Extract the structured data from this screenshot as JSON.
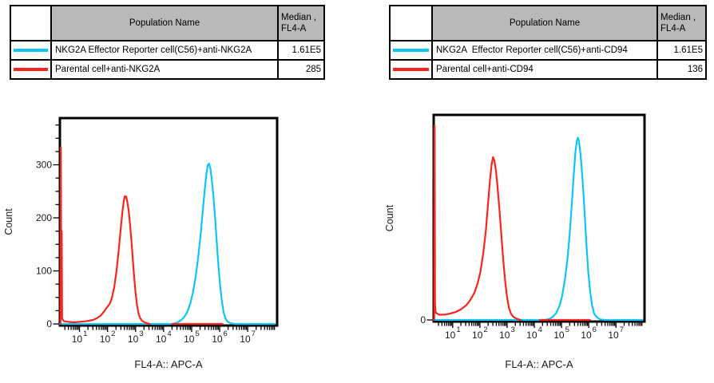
{
  "panels": [
    {
      "legend": {
        "header": {
          "swatch": "",
          "name": "Population Name",
          "median_line1": "Median ,",
          "median_line2": "FL4-A"
        },
        "rows": [
          {
            "name": "NKG2A Effector Reporter cell(C56)+anti-NKG2A",
            "median": "1.61E5",
            "color": "#0cc5f8"
          },
          {
            "name": "Parental cell+anti-NKG2A",
            "median": "285",
            "color": "#fa241c"
          }
        ]
      }
    },
    {
      "legend": {
        "header": {
          "swatch": "",
          "name": "Population Name",
          "median_line1": "Median ,",
          "median_line2": "FL4-A"
        },
        "rows": [
          {
            "name": "NKG2A  Effector Reporter cell(C56)+anti-CD94",
            "median": "1.61E5",
            "color": "#0cc5f8"
          },
          {
            "name": "Parental cell+anti-CD94",
            "median": "136",
            "color": "#fa241c"
          }
        ]
      }
    }
  ],
  "chart_data": [
    {
      "type": "line",
      "subtype": "flow-cytometry-histogram-overlay",
      "title": "",
      "xlabel": "FL4-A:: APC-A",
      "ylabel": "Count",
      "x_scale": "log10",
      "x_log_range": [
        0.3,
        8.05
      ],
      "x_tick_base": "10",
      "x_major_decades": [
        1,
        2,
        3,
        4,
        5,
        6,
        7
      ],
      "ylim": [
        0,
        385
      ],
      "y_ticks": [
        0,
        100,
        200,
        300
      ],
      "y_tick_labels": [
        "0",
        "100",
        "200",
        "300"
      ],
      "y_minor_step": 25,
      "grid": false,
      "legend_position": "table-above",
      "series": [
        {
          "name": "NKG2A Effector Reporter cell(C56)+anti-NKG2A",
          "color": "#0cc5f8",
          "median": "1.61E5",
          "peak": {
            "x_log": 5.62,
            "count": 302
          },
          "segments": [
            [
              [
                0.3,
                0
              ],
              [
                4.3,
                0
              ],
              [
                4.45,
                2
              ],
              [
                4.6,
                6
              ],
              [
                4.72,
                12
              ],
              [
                4.84,
                22
              ],
              [
                4.95,
                38
              ],
              [
                5.05,
                60
              ],
              [
                5.14,
                88
              ],
              [
                5.23,
                124
              ],
              [
                5.32,
                168
              ],
              [
                5.4,
                215
              ],
              [
                5.47,
                255
              ],
              [
                5.53,
                285
              ],
              [
                5.58,
                300
              ],
              [
                5.62,
                302
              ],
              [
                5.67,
                293
              ],
              [
                5.72,
                272
              ],
              [
                5.78,
                240
              ],
              [
                5.84,
                198
              ],
              [
                5.9,
                152
              ],
              [
                5.96,
                108
              ],
              [
                6.02,
                70
              ],
              [
                6.08,
                42
              ],
              [
                6.14,
                22
              ],
              [
                6.21,
                10
              ],
              [
                6.29,
                4
              ],
              [
                6.4,
                1
              ],
              [
                6.55,
                0
              ],
              [
                7.97,
                0
              ]
            ]
          ]
        },
        {
          "name": "Parental cell+anti-NKG2A",
          "color": "#fa241c",
          "median": "285",
          "peak": {
            "x_log": 2.62,
            "count": 241
          },
          "segments": [
            [
              [
                0.32,
                0
              ],
              [
                0.335,
                333
              ],
              [
                0.35,
                25
              ],
              [
                0.365,
                175
              ],
              [
                0.38,
                10
              ],
              [
                0.45,
                5
              ],
              [
                0.6,
                4
              ],
              [
                0.8,
                3
              ],
              [
                1.0,
                4
              ],
              [
                1.2,
                5
              ],
              [
                1.35,
                6
              ],
              [
                1.5,
                8
              ],
              [
                1.62,
                11
              ],
              [
                1.74,
                15
              ],
              [
                1.84,
                21
              ],
              [
                1.92,
                27
              ],
              [
                2.0,
                33
              ],
              [
                2.08,
                38
              ],
              [
                2.16,
                50
              ],
              [
                2.24,
                70
              ],
              [
                2.32,
                100
              ],
              [
                2.4,
                140
              ],
              [
                2.47,
                180
              ],
              [
                2.53,
                212
              ],
              [
                2.58,
                232
              ],
              [
                2.62,
                241
              ],
              [
                2.66,
                240
              ],
              [
                2.7,
                232
              ],
              [
                2.75,
                215
              ],
              [
                2.8,
                190
              ],
              [
                2.85,
                158
              ],
              [
                2.9,
                122
              ],
              [
                2.95,
                88
              ],
              [
                3.0,
                58
              ],
              [
                3.05,
                36
              ],
              [
                3.1,
                21
              ],
              [
                3.16,
                11
              ],
              [
                3.23,
                6
              ],
              [
                3.32,
                3
              ],
              [
                3.42,
                1
              ],
              [
                3.5,
                0
              ]
            ],
            [
              [
                4.3,
                0
              ],
              [
                6.1,
                0
              ]
            ]
          ]
        }
      ]
    },
    {
      "type": "line",
      "subtype": "flow-cytometry-histogram-overlay",
      "title": "",
      "xlabel": "FL4-A:: APC-A",
      "ylabel": "Count",
      "x_scale": "log10",
      "x_log_range": [
        0.3,
        8.05
      ],
      "x_tick_base": "10",
      "x_major_decades": [
        1,
        2,
        3,
        4,
        5,
        6,
        7
      ],
      "ylim": [
        0,
        385
      ],
      "y_ticks": [
        0
      ],
      "y_tick_labels": [
        "0"
      ],
      "y_minor_step": null,
      "grid": false,
      "legend_position": "table-above",
      "series": [
        {
          "name": "NKG2A  Effector Reporter cell(C56)+anti-CD94",
          "color": "#0cc5f8",
          "median": "1.61E5",
          "peak": {
            "x_log": 5.6,
            "count": 345
          },
          "segments": [
            [
              [
                0.3,
                0
              ],
              [
                4.4,
                0
              ],
              [
                4.55,
                2
              ],
              [
                4.68,
                6
              ],
              [
                4.8,
                13
              ],
              [
                4.92,
                26
              ],
              [
                5.02,
                45
              ],
              [
                5.12,
                75
              ],
              [
                5.21,
                112
              ],
              [
                5.3,
                162
              ],
              [
                5.38,
                220
              ],
              [
                5.45,
                275
              ],
              [
                5.51,
                318
              ],
              [
                5.56,
                338
              ],
              [
                5.6,
                345
              ],
              [
                5.64,
                338
              ],
              [
                5.69,
                318
              ],
              [
                5.74,
                288
              ],
              [
                5.8,
                244
              ],
              [
                5.86,
                192
              ],
              [
                5.92,
                140
              ],
              [
                5.98,
                92
              ],
              [
                6.05,
                55
              ],
              [
                6.12,
                28
              ],
              [
                6.2,
                12
              ],
              [
                6.3,
                5
              ],
              [
                6.42,
                1
              ],
              [
                6.6,
                0
              ],
              [
                7.97,
                0
              ]
            ]
          ]
        },
        {
          "name": "Parental cell+anti-CD94",
          "color": "#fa241c",
          "median": "136",
          "peak": {
            "x_log": 2.48,
            "count": 308
          },
          "segments": [
            [
              [
                0.32,
                0
              ],
              [
                0.335,
                368
              ],
              [
                0.35,
                30
              ],
              [
                0.37,
                14
              ],
              [
                0.5,
                10
              ],
              [
                0.7,
                10
              ],
              [
                0.9,
                12
              ],
              [
                1.1,
                15
              ],
              [
                1.3,
                20
              ],
              [
                1.5,
                28
              ],
              [
                1.65,
                38
              ],
              [
                1.8,
                52
              ],
              [
                1.92,
                70
              ],
              [
                2.02,
                92
              ],
              [
                2.12,
                125
              ],
              [
                2.22,
                170
              ],
              [
                2.3,
                220
              ],
              [
                2.37,
                265
              ],
              [
                2.43,
                295
              ],
              [
                2.48,
                308
              ],
              [
                2.53,
                302
              ],
              [
                2.59,
                282
              ],
              [
                2.65,
                250
              ],
              [
                2.72,
                208
              ],
              [
                2.79,
                160
              ],
              [
                2.86,
                112
              ],
              [
                2.93,
                72
              ],
              [
                3.0,
                42
              ],
              [
                3.07,
                22
              ],
              [
                3.15,
                11
              ],
              [
                3.25,
                5
              ],
              [
                3.37,
                2
              ],
              [
                3.5,
                0
              ]
            ],
            [
              [
                4.2,
                0
              ],
              [
                6.05,
                0
              ]
            ]
          ]
        }
      ]
    }
  ]
}
